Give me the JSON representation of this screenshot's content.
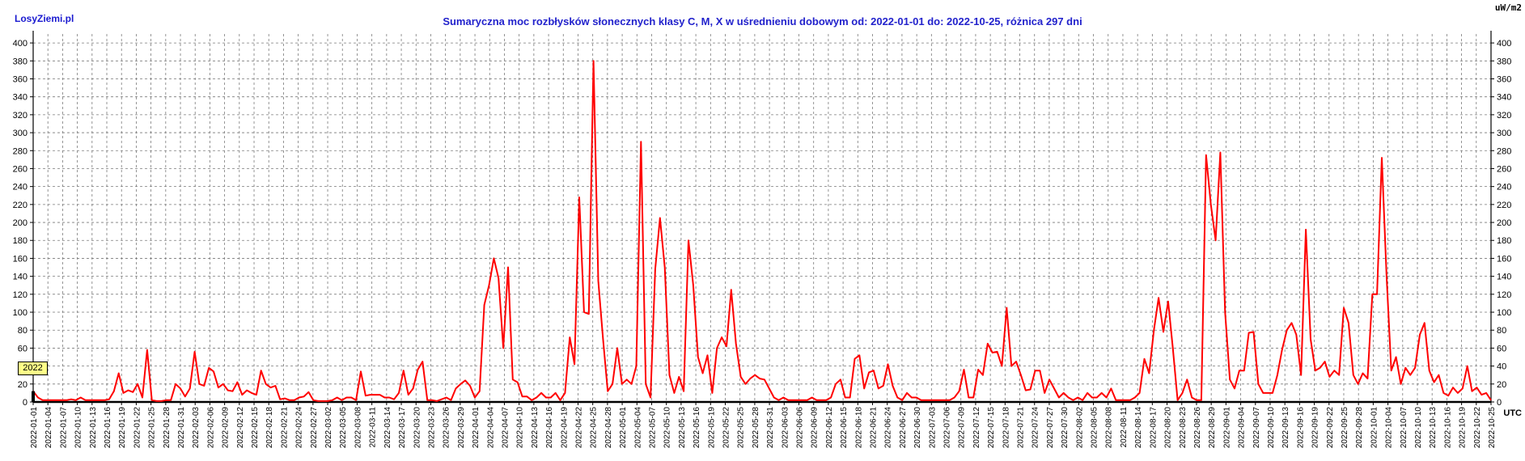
{
  "brand": "LosyZiemi.pl",
  "title": "Sumaryczna moc rozbłysków słonecznych klasy C, M, X w uśrednieniu dobowym od: 2022-01-01 do: 2022-10-25, różnica 297 dni",
  "unit_label": "uW/m2",
  "utc_label": "UTC",
  "year_badge": "2022",
  "colors": {
    "line": "#ff0000",
    "title": "#2222cc",
    "grid": "#808080"
  },
  "chart_data": {
    "type": "line",
    "title": "Sumaryczna moc rozbłysków słonecznych klasy C, M, X w uśrednieniu dobowym od: 2022-01-01 do: 2022-10-25, różnica 297 dni",
    "ylabel": "uW/m2",
    "xlabel": "UTC",
    "ylim": [
      0,
      410
    ],
    "yticks": [
      0,
      20,
      40,
      60,
      80,
      100,
      120,
      140,
      160,
      180,
      200,
      220,
      240,
      260,
      280,
      300,
      320,
      340,
      360,
      380,
      400
    ],
    "grid": true,
    "x_start": "2022-01-01",
    "x_end": "2022-10-25",
    "xtick_labels": [
      "2022-01-01",
      "2022-01-04",
      "2022-01-07",
      "2022-01-10",
      "2022-01-13",
      "2022-01-16",
      "2022-01-19",
      "2022-01-22",
      "2022-01-25",
      "2022-01-28",
      "2022-01-31",
      "2022-02-03",
      "2022-02-06",
      "2022-02-09",
      "2022-02-12",
      "2022-02-15",
      "2022-02-18",
      "2022-02-21",
      "2022-02-24",
      "2022-02-27",
      "2022-03-02",
      "2022-03-05",
      "2022-03-08",
      "2022-03-11",
      "2022-03-14",
      "2022-03-17",
      "2022-03-20",
      "2022-03-23",
      "2022-03-26",
      "2022-03-29",
      "2022-04-01",
      "2022-04-04",
      "2022-04-07",
      "2022-04-10",
      "2022-04-13",
      "2022-04-16",
      "2022-04-19",
      "2022-04-22",
      "2022-04-25",
      "2022-04-28",
      "2022-05-01",
      "2022-05-04",
      "2022-05-07",
      "2022-05-10",
      "2022-05-13",
      "2022-05-16",
      "2022-05-19",
      "2022-05-22",
      "2022-05-25",
      "2022-05-28",
      "2022-05-31",
      "2022-06-03",
      "2022-06-06",
      "2022-06-09",
      "2022-06-12",
      "2022-06-15",
      "2022-06-18",
      "2022-06-21",
      "2022-06-24",
      "2022-06-27",
      "2022-06-30",
      "2022-07-03",
      "2022-07-06",
      "2022-07-09",
      "2022-07-12",
      "2022-07-15",
      "2022-07-18",
      "2022-07-21",
      "2022-07-24",
      "2022-07-27",
      "2022-07-30",
      "2022-08-02",
      "2022-08-05",
      "2022-08-08",
      "2022-08-11",
      "2022-08-14",
      "2022-08-17",
      "2022-08-20",
      "2022-08-23",
      "2022-08-26",
      "2022-08-29",
      "2022-09-01",
      "2022-09-04",
      "2022-09-07",
      "2022-09-10",
      "2022-09-13",
      "2022-09-16",
      "2022-09-19",
      "2022-09-22",
      "2022-09-25",
      "2022-09-28",
      "2022-10-01",
      "2022-10-04",
      "2022-10-07",
      "2022-10-10",
      "2022-10-13",
      "2022-10-16",
      "2022-10-19",
      "2022-10-22",
      "2022-10-25"
    ],
    "series": [
      {
        "values": [
          12,
          5,
          2,
          2,
          2,
          2,
          2,
          2,
          3,
          2,
          5,
          2,
          2,
          2,
          2,
          2,
          3,
          12,
          32,
          10,
          13,
          11,
          20,
          5,
          58,
          2,
          1,
          1,
          2,
          2,
          20,
          15,
          6,
          15,
          56,
          20,
          18,
          38,
          34,
          16,
          20,
          13,
          12,
          22,
          8,
          13,
          10,
          8,
          35,
          20,
          16,
          18,
          3,
          4,
          2,
          2,
          5,
          6,
          11,
          2,
          1,
          1,
          1,
          2,
          5,
          2,
          5,
          5,
          2,
          34,
          7,
          8,
          8,
          8,
          5,
          5,
          3,
          10,
          35,
          8,
          15,
          36,
          45,
          2,
          2,
          1,
          3,
          5,
          2,
          15,
          20,
          24,
          18,
          5,
          12,
          108,
          130,
          160,
          138,
          60,
          150,
          25,
          22,
          6,
          6,
          2,
          5,
          10,
          5,
          5,
          10,
          2,
          10,
          72,
          42,
          228,
          100,
          98,
          380,
          135,
          70,
          12,
          20,
          60,
          20,
          25,
          20,
          40,
          290,
          20,
          5,
          148,
          205,
          150,
          30,
          10,
          28,
          12,
          180,
          130,
          50,
          32,
          52,
          10,
          60,
          72,
          62,
          125,
          65,
          28,
          20,
          26,
          30,
          26,
          25,
          15,
          5,
          2,
          5,
          2,
          2,
          2,
          2,
          2,
          5,
          2,
          2,
          2,
          5,
          20,
          25,
          5,
          5,
          48,
          52,
          15,
          33,
          35,
          15,
          18,
          42,
          18,
          5,
          2,
          10,
          5,
          5,
          2,
          2,
          2,
          2,
          2,
          2,
          2,
          5,
          12,
          36,
          5,
          5,
          36,
          30,
          65,
          55,
          56,
          40,
          105,
          40,
          45,
          30,
          13,
          14,
          35,
          35,
          10,
          25,
          15,
          5,
          10,
          5,
          2,
          5,
          2,
          10,
          5,
          5,
          10,
          5,
          15,
          2,
          2,
          2,
          2,
          5,
          10,
          48,
          32,
          80,
          116,
          78,
          112,
          60,
          2,
          10,
          25,
          5,
          2,
          2,
          275,
          220,
          180,
          278,
          100,
          25,
          15,
          35,
          35,
          77,
          78,
          20,
          10,
          10,
          10,
          30,
          58,
          80,
          88,
          75,
          30,
          192,
          70,
          35,
          38,
          45,
          28,
          35,
          30,
          105,
          88,
          30,
          20,
          32,
          26,
          120,
          120,
          272,
          140,
          35,
          50,
          20,
          38,
          30,
          38,
          75,
          88,
          35,
          22,
          30,
          10,
          7,
          16,
          10,
          15,
          40,
          12,
          16,
          8,
          10,
          2
        ]
      }
    ]
  }
}
